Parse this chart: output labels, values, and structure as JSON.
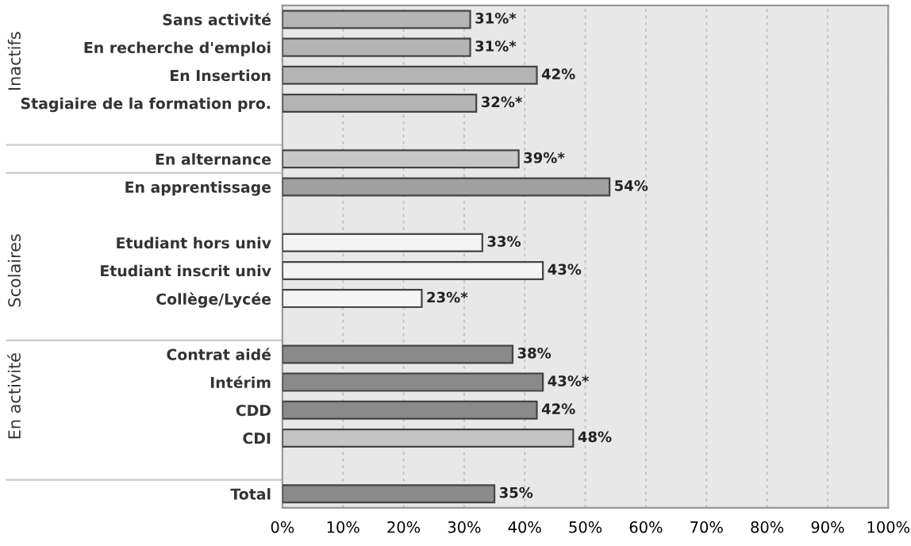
{
  "chart_data": {
    "type": "bar",
    "orientation": "horizontal",
    "categories": [
      "Sans activité",
      "En recherche d'emploi",
      "En Insertion",
      "Stagiaire de la formation pro.",
      null,
      "En alternance",
      "En apprentissage",
      null,
      "Etudiant hors univ",
      "Etudiant inscrit univ",
      "Collège/Lycée",
      null,
      "Contrat aidé",
      "Intérim",
      "CDD",
      "CDI",
      null,
      "Total"
    ],
    "values": [
      31,
      31,
      42,
      32,
      null,
      39,
      54,
      null,
      33,
      43,
      23,
      null,
      38,
      43,
      42,
      48,
      null,
      35
    ],
    "value_labels": [
      "31%*",
      "31%*",
      "42%",
      "32%*",
      null,
      "39%*",
      "54%",
      null,
      "33%",
      "43%",
      "23%*",
      null,
      "38%",
      "43%*",
      "42%",
      "48%",
      null,
      "35%"
    ],
    "colors": [
      "#b4b4b4",
      "#b4b4b4",
      "#b4b4b4",
      "#b4b4b4",
      "#ffffff",
      "#c8c8c8",
      "#a0a0a0",
      "#ffffff",
      "#f4f4f4",
      "#f4f4f4",
      "#f4f4f4",
      "#ffffff",
      "#8a8a8a",
      "#8a8a8a",
      "#8a8a8a",
      "#c4c4c4",
      "#ffffff",
      "#8a8a8a"
    ],
    "xlim": [
      0,
      100
    ],
    "xticks": [
      {
        "value": 0,
        "label": "0%"
      },
      {
        "value": 10,
        "label": "10%"
      },
      {
        "value": 20,
        "label": "20%"
      },
      {
        "value": 30,
        "label": "30%"
      },
      {
        "value": 40,
        "label": "40%"
      },
      {
        "value": 50,
        "label": "50%"
      },
      {
        "value": 60,
        "label": "60%"
      },
      {
        "value": 70,
        "label": "70%"
      },
      {
        "value": 80,
        "label": "80%"
      },
      {
        "value": 90,
        "label": "90%"
      },
      {
        "value": 100,
        "label": "100%"
      }
    ],
    "grid": "x",
    "annotations": [
      "Inactifs",
      "Scolaires",
      "En activité"
    ]
  }
}
